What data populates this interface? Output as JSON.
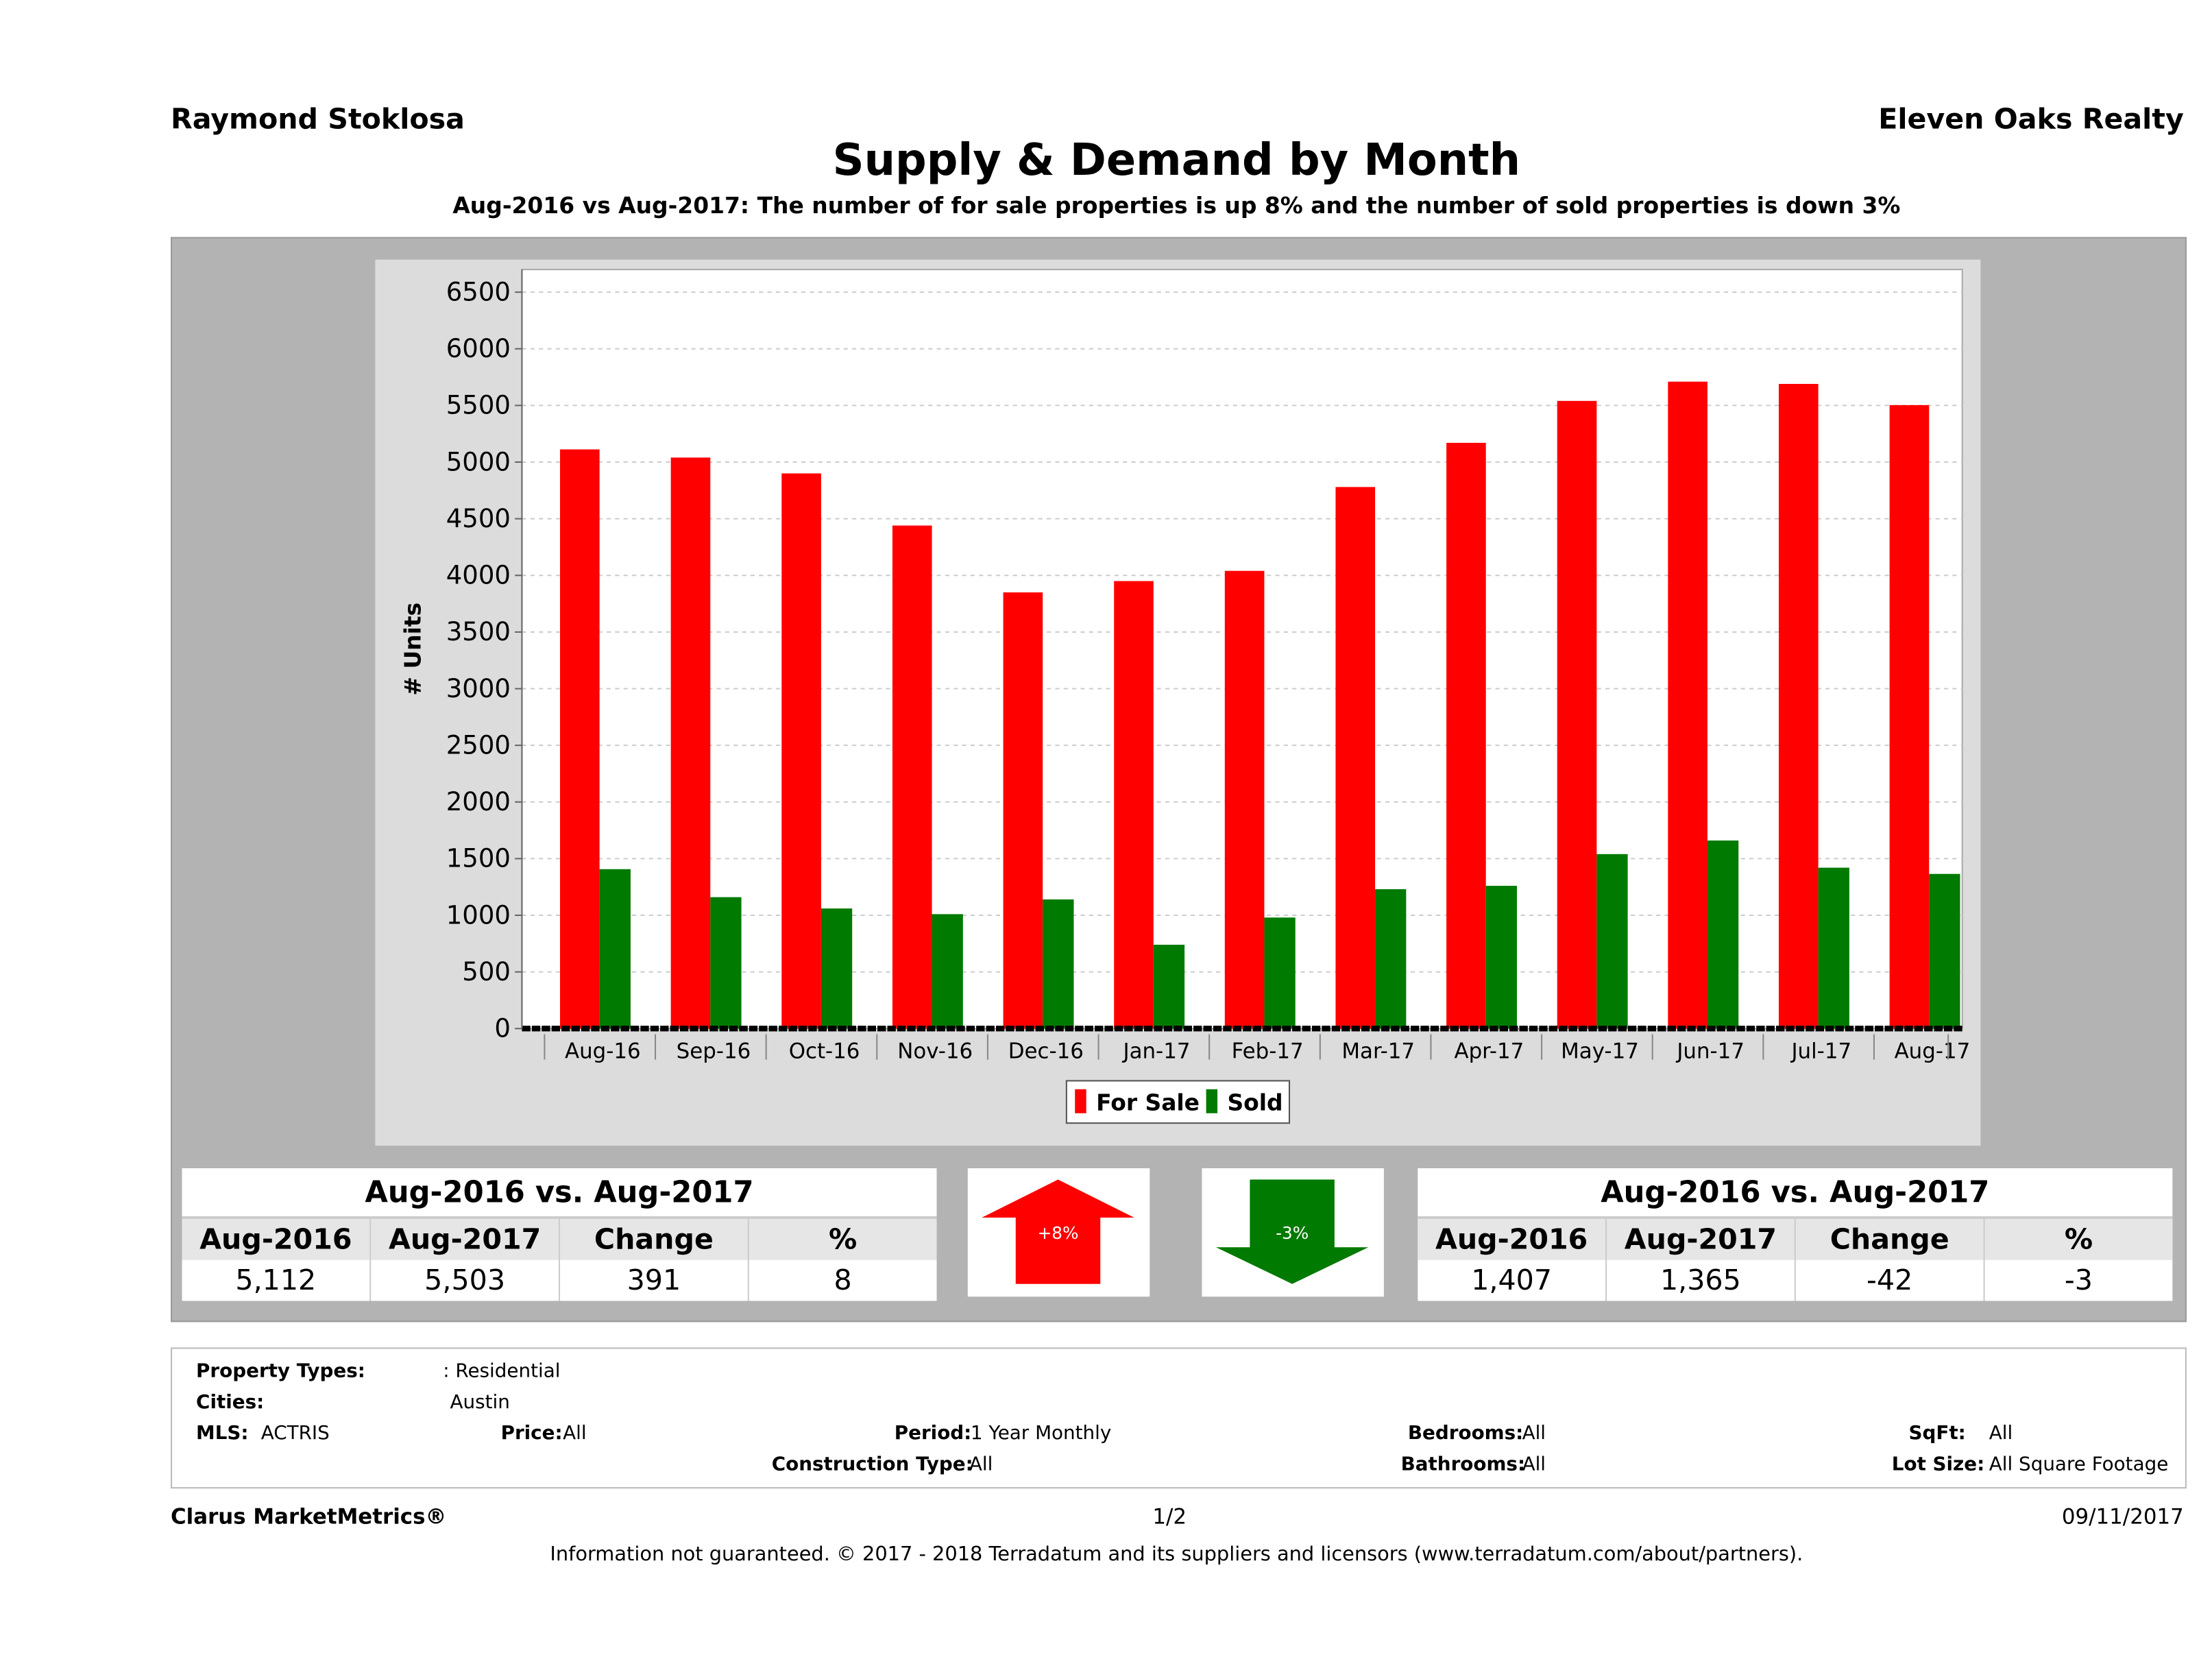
{
  "header": {
    "agent": "Raymond Stoklosa",
    "brokerage": "Eleven Oaks Realty",
    "title": "Supply & Demand by Month",
    "subtitle": "Aug-2016 vs Aug-2017: The number of for sale properties is up 8% and the number of sold properties is down 3%"
  },
  "chart_data": {
    "type": "bar",
    "title": "Supply & Demand by Month",
    "xlabel": "",
    "ylabel": "# Units",
    "ylim": [
      0,
      6700
    ],
    "yticks": [
      0,
      500,
      1000,
      1500,
      2000,
      2500,
      3000,
      3500,
      4000,
      4500,
      5000,
      5500,
      6000,
      6500
    ],
    "grid": true,
    "legend_position": "bottom",
    "categories": [
      "Aug-16",
      "Sep-16",
      "Oct-16",
      "Nov-16",
      "Dec-16",
      "Jan-17",
      "Feb-17",
      "Mar-17",
      "Apr-17",
      "May-17",
      "Jun-17",
      "Jul-17",
      "Aug-17"
    ],
    "series": [
      {
        "name": "For Sale",
        "color": "#ff0000",
        "values": [
          5112,
          5040,
          4900,
          4440,
          3850,
          3950,
          4040,
          4780,
          5170,
          5540,
          5710,
          5690,
          5503
        ]
      },
      {
        "name": "Sold",
        "color": "#007a00",
        "values": [
          1407,
          1160,
          1060,
          1010,
          1140,
          740,
          980,
          1230,
          1260,
          1540,
          1660,
          1420,
          1365
        ]
      }
    ]
  },
  "for_sale_table": {
    "caption": "Aug-2016 vs. Aug-2017",
    "headers": [
      "Aug-2016",
      "Aug-2017",
      "Change",
      "%"
    ],
    "values": [
      "5,112",
      "5,503",
      "391",
      "8"
    ]
  },
  "sold_table": {
    "caption": "Aug-2016 vs. Aug-2017",
    "headers": [
      "Aug-2016",
      "Aug-2017",
      "Change",
      "%"
    ],
    "values": [
      "1,407",
      "1,365",
      "-42",
      "-3"
    ]
  },
  "arrows": {
    "up": {
      "label": "+8%",
      "color": "#ff0000"
    },
    "down": {
      "label": "-3%",
      "color": "#007a00"
    }
  },
  "info": {
    "property_types_label": "Property Types:",
    "property_types": ": Residential",
    "cities_label": "Cities:",
    "cities": "Austin",
    "mls_label": "MLS:",
    "mls": "ACTRIS",
    "price_label": "Price:",
    "price": "All",
    "period_label": "Period:",
    "period": "1 Year Monthly",
    "bedrooms_label": "Bedrooms:",
    "bedrooms": "All",
    "sqft_label": "SqFt:",
    "sqft": "All",
    "construction_label": "Construction Type:",
    "construction": "All",
    "bathrooms_label": "Bathrooms:",
    "bathrooms": "All",
    "lot_label": "Lot Size:",
    "lot": "All Square Footage"
  },
  "footer": {
    "brand": "Clarus MarketMetrics®",
    "page": "1/2",
    "date": "09/11/2017",
    "note": "Information not guaranteed. © 2017 - 2018 Terradatum and its suppliers and licensors (www.terradatum.com/about/partners)."
  }
}
